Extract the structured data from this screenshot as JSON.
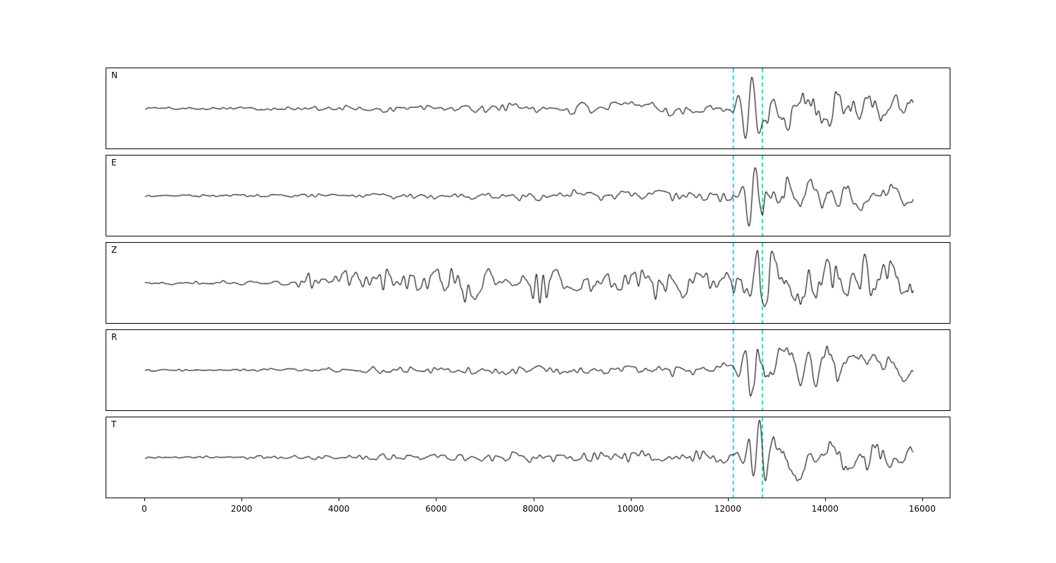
{
  "figure": {
    "background": "#ffffff",
    "description": "Five-channel seismogram record section with two dashed phase-pick lines"
  },
  "chart_data": {
    "type": "line",
    "title": "",
    "xlabel": "",
    "ylabel": "",
    "trace_color": "#000000",
    "axes_edge_color": "#000000",
    "grid": false,
    "legend": "none",
    "x": {
      "lim": [
        -800,
        16600
      ],
      "ticks": [
        0,
        2000,
        4000,
        6000,
        8000,
        10000,
        12000,
        14000,
        16000
      ],
      "tick_labels": [
        "0",
        "2000",
        "4000",
        "6000",
        "8000",
        "10000",
        "12000",
        "14000",
        "16000"
      ],
      "data_start": 0,
      "data_end": 15800
    },
    "pick_lines": {
      "x": [
        12100,
        12700
      ],
      "color": "#00bfc4",
      "style": "dashed"
    },
    "noise_components": [
      {
        "grid_step": 70,
        "weight": 0.8
      },
      {
        "grid_step": 180,
        "weight": 0.55
      }
    ],
    "coda_components": [
      {
        "grid_step": 150,
        "weight": 1.0
      },
      {
        "grid_step": 55,
        "weight": 0.35
      }
    ],
    "panels": [
      {
        "label": "N",
        "seed": 101,
        "noise_env": [
          [
            0,
            0.035
          ],
          [
            2800,
            0.05
          ],
          [
            4200,
            0.09
          ],
          [
            6500,
            0.13
          ],
          [
            9000,
            0.17
          ],
          [
            11800,
            0.19
          ],
          [
            12800,
            0.12
          ],
          [
            15800,
            0.08
          ]
        ],
        "coda_env": [
          [
            12150,
            0
          ],
          [
            12600,
            0.6
          ],
          [
            13600,
            0.65
          ],
          [
            14800,
            0.45
          ],
          [
            15800,
            0.38
          ]
        ],
        "burst": {
          "center": 12420,
          "sigma": 170,
          "amp": 0.95,
          "wavelength": 300
        }
      },
      {
        "label": "E",
        "seed": 202,
        "noise_env": [
          [
            0,
            0.03
          ],
          [
            2800,
            0.045
          ],
          [
            4500,
            0.08
          ],
          [
            7000,
            0.11
          ],
          [
            9000,
            0.15
          ],
          [
            11800,
            0.17
          ],
          [
            12800,
            0.11
          ],
          [
            15800,
            0.08
          ]
        ],
        "coda_env": [
          [
            12250,
            0
          ],
          [
            12750,
            0.62
          ],
          [
            13600,
            0.45
          ],
          [
            14800,
            0.33
          ],
          [
            15800,
            0.3
          ]
        ],
        "burst": {
          "center": 12520,
          "sigma": 150,
          "amp": 0.95,
          "wavelength": 270
        }
      },
      {
        "label": "Z",
        "seed": 303,
        "noise_env": [
          [
            0,
            0.05
          ],
          [
            3050,
            0.06
          ],
          [
            3250,
            0.42
          ],
          [
            3600,
            0.3
          ],
          [
            5200,
            0.38
          ],
          [
            6200,
            0.45
          ],
          [
            8200,
            0.6
          ],
          [
            8800,
            0.45
          ],
          [
            10500,
            0.42
          ],
          [
            12000,
            0.45
          ],
          [
            13500,
            0.5
          ],
          [
            15500,
            0.48
          ],
          [
            15750,
            0.85
          ],
          [
            15800,
            0.3
          ]
        ],
        "coda_env": [
          [
            12300,
            0
          ],
          [
            12900,
            0.5
          ],
          [
            14000,
            0.45
          ],
          [
            15800,
            0.45
          ]
        ],
        "burst": {
          "center": 12750,
          "sigma": 240,
          "amp": 0.8,
          "wavelength": 320
        }
      },
      {
        "label": "R",
        "seed": 404,
        "noise_env": [
          [
            0,
            0.03
          ],
          [
            2800,
            0.045
          ],
          [
            4200,
            0.08
          ],
          [
            6500,
            0.12
          ],
          [
            9000,
            0.16
          ],
          [
            11800,
            0.18
          ],
          [
            12800,
            0.11
          ],
          [
            15800,
            0.08
          ]
        ],
        "coda_env": [
          [
            12150,
            0
          ],
          [
            12600,
            0.62
          ],
          [
            13600,
            0.6
          ],
          [
            14800,
            0.42
          ],
          [
            15800,
            0.35
          ]
        ],
        "burst": {
          "center": 12430,
          "sigma": 160,
          "amp": 0.95,
          "wavelength": 290
        }
      },
      {
        "label": "T",
        "seed": 505,
        "noise_env": [
          [
            0,
            0.03
          ],
          [
            2800,
            0.05
          ],
          [
            4800,
            0.09
          ],
          [
            7000,
            0.14
          ],
          [
            9000,
            0.17
          ],
          [
            11800,
            0.19
          ],
          [
            12800,
            0.12
          ],
          [
            15800,
            0.09
          ]
        ],
        "coda_env": [
          [
            12250,
            0
          ],
          [
            12800,
            0.62
          ],
          [
            13800,
            0.55
          ],
          [
            14900,
            0.4
          ],
          [
            15800,
            0.33
          ]
        ],
        "burst": {
          "center": 12550,
          "sigma": 140,
          "amp": 0.9,
          "wavelength": 260
        }
      }
    ]
  }
}
